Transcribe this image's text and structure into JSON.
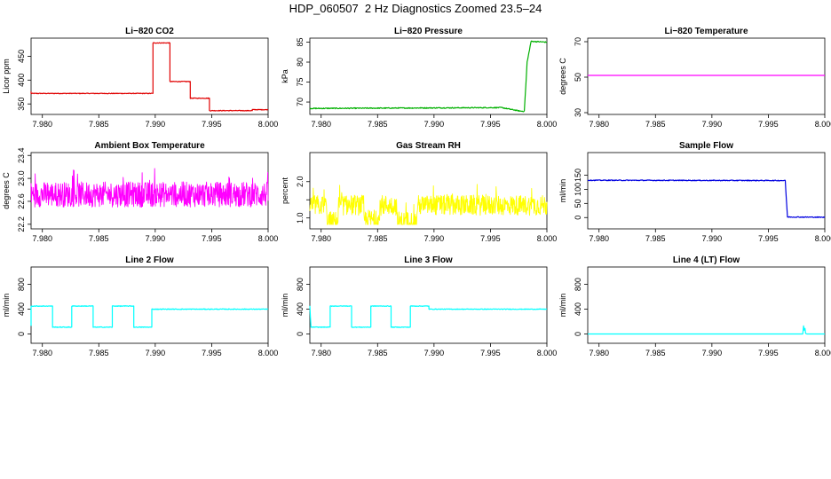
{
  "page": {
    "title": "HDP_060507  2 Hz Diagnostics Zoomed 23.5–24"
  },
  "colors": {
    "red": "#e00000",
    "green": "#00b000",
    "magenta": "#ff00ff",
    "yellow": "#ffff00",
    "blue": "#0000e0",
    "cyan": "#00ffff"
  },
  "chart_data": [
    {
      "type": "line",
      "title": "Li−820 CO2",
      "ylabel": "Licor ppm",
      "xlim": [
        7.979,
        8.0
      ],
      "x_ticks": [
        7.98,
        7.985,
        7.99,
        7.995,
        8.0
      ],
      "x_tick_labels": [
        "7.980",
        "7.985",
        "7.990",
        "7.995",
        "8.000"
      ],
      "ylim": [
        328,
        488
      ],
      "y_ticks": [
        350,
        400,
        450
      ],
      "y_tick_labels": [
        "350",
        "400",
        "450"
      ],
      "series": [
        {
          "color": "red",
          "noise": 0.7,
          "tick_marks_every": 0.0002,
          "x": [
            7.979,
            7.979,
            7.9898,
            7.9898,
            7.9913,
            7.9913,
            7.9931,
            7.9931,
            7.9948,
            7.9948,
            7.9986,
            7.9986,
            8.0
          ],
          "y": [
            376,
            372,
            372,
            478,
            478,
            397,
            397,
            362,
            362,
            336,
            336,
            338,
            338
          ]
        }
      ]
    },
    {
      "type": "line",
      "title": "Li−820 Pressure",
      "ylabel": "kPa",
      "xlim": [
        7.979,
        8.0
      ],
      "x_ticks": [
        7.98,
        7.985,
        7.99,
        7.995,
        8.0
      ],
      "x_tick_labels": [
        "7.980",
        "7.985",
        "7.990",
        "7.995",
        "8.000"
      ],
      "ylim": [
        66.9,
        86
      ],
      "y_ticks": [
        70,
        75,
        80,
        85
      ],
      "y_tick_labels": [
        "70",
        "75",
        "80",
        "85"
      ],
      "series": [
        {
          "color": "green",
          "noise": 0.12,
          "x": [
            7.979,
            7.9955,
            7.996,
            7.9977,
            7.998,
            7.99815,
            7.99825,
            7.99845,
            7.9986,
            8.0
          ],
          "y": [
            68.4,
            68.6,
            68.6,
            67.7,
            67.7,
            75,
            80,
            83,
            85.2,
            85
          ]
        }
      ]
    },
    {
      "type": "line",
      "title": "Li−820 Temperature",
      "ylabel": "degrees C",
      "xlim": [
        7.979,
        8.0
      ],
      "x_ticks": [
        7.98,
        7.985,
        7.99,
        7.995,
        8.0
      ],
      "x_tick_labels": [
        "7.980",
        "7.985",
        "7.990",
        "7.995",
        "8.000"
      ],
      "ylim": [
        29,
        72
      ],
      "y_ticks": [
        30,
        50,
        70
      ],
      "y_tick_labels": [
        "30",
        "50",
        "70"
      ],
      "series": [
        {
          "color": "magenta",
          "noise": 0,
          "x": [
            7.979,
            8.0
          ],
          "y": [
            51,
            51
          ]
        }
      ]
    },
    {
      "type": "line",
      "title": "Ambient Box Temperature",
      "ylabel": "degrees C",
      "xlim": [
        7.979,
        8.0
      ],
      "x_ticks": [
        7.98,
        7.985,
        7.99,
        7.995,
        8.0
      ],
      "x_tick_labels": [
        "7.980",
        "7.985",
        "7.990",
        "7.995",
        "8.000"
      ],
      "ylim": [
        22.12,
        23.45
      ],
      "y_ticks": [
        22.2,
        22.6,
        23.0,
        23.4
      ],
      "y_tick_labels": [
        "22.2",
        "22.6",
        "23.0",
        "23.4"
      ],
      "series": [
        {
          "color": "magenta",
          "noise_band": [
            22.25,
            23.35
          ],
          "base": 22.72,
          "spread": 0.22,
          "x": [
            7.979,
            8.0
          ]
        }
      ]
    },
    {
      "type": "line",
      "title": "Gas Stream RH",
      "ylabel": "percent",
      "xlim": [
        7.979,
        8.0
      ],
      "x_ticks": [
        7.98,
        7.985,
        7.99,
        7.995,
        8.0
      ],
      "x_tick_labels": [
        "7.980",
        "7.985",
        "7.990",
        "7.995",
        "8.000"
      ],
      "ylim": [
        0.7,
        2.8
      ],
      "y_ticks": [
        1.0,
        1.5,
        2.0
      ],
      "y_tick_labels": [
        "1.0",
        "",
        "2.0"
      ],
      "series": [
        {
          "color": "yellow",
          "noise_band": [
            0.82,
            2.7
          ],
          "base": 1.35,
          "spread": 0.28,
          "dips": [
            [
              7.9805,
              7.9815,
              0.9
            ],
            [
              7.9838,
              7.9852,
              0.95
            ],
            [
              7.9867,
              7.9885,
              0.9
            ]
          ],
          "x": [
            7.979,
            8.0
          ]
        }
      ]
    },
    {
      "type": "line",
      "title": "Sample Flow",
      "ylabel": "ml/min",
      "xlim": [
        7.979,
        8.0
      ],
      "x_ticks": [
        7.98,
        7.985,
        7.99,
        7.995,
        8.0
      ],
      "x_tick_labels": [
        "7.980",
        "7.985",
        "7.990",
        "7.995",
        "8.000"
      ],
      "ylim": [
        -40,
        230
      ],
      "y_ticks": [
        0,
        50,
        100,
        150
      ],
      "y_tick_labels": [
        "0",
        "50",
        "100",
        "150"
      ],
      "series": [
        {
          "color": "blue",
          "noise": 1.5,
          "x": [
            7.979,
            7.9965,
            7.9966,
            7.9967,
            8.0
          ],
          "y": [
            132,
            131,
            60,
            2,
            1
          ]
        }
      ]
    },
    {
      "type": "line",
      "title": "Line 2 Flow",
      "ylabel": "ml/min",
      "xlim": [
        7.979,
        8.0
      ],
      "x_ticks": [
        7.98,
        7.985,
        7.99,
        7.995,
        8.0
      ],
      "x_tick_labels": [
        "7.980",
        "7.985",
        "7.990",
        "7.995",
        "8.000"
      ],
      "ylim": [
        -150,
        1080
      ],
      "y_ticks": [
        0,
        400,
        800
      ],
      "y_tick_labels": [
        "0",
        "400",
        "800"
      ],
      "series": [
        {
          "color": "cyan",
          "noise": 6,
          "x": [
            7.979,
            7.979,
            7.9809,
            7.9809,
            7.9826,
            7.9826,
            7.9845,
            7.9845,
            7.9862,
            7.9862,
            7.9881,
            7.9881,
            7.9897,
            7.9897,
            8.0
          ],
          "y": [
            130,
            450,
            450,
            110,
            110,
            450,
            450,
            110,
            110,
            450,
            450,
            110,
            110,
            400,
            400
          ]
        }
      ]
    },
    {
      "type": "line",
      "title": "Line 3 Flow",
      "ylabel": "ml/min",
      "xlim": [
        7.979,
        8.0
      ],
      "x_ticks": [
        7.98,
        7.985,
        7.99,
        7.995,
        8.0
      ],
      "x_tick_labels": [
        "7.980",
        "7.985",
        "7.990",
        "7.995",
        "8.000"
      ],
      "ylim": [
        -150,
        1080
      ],
      "y_ticks": [
        0,
        400,
        800
      ],
      "y_tick_labels": [
        "0",
        "400",
        "800"
      ],
      "series": [
        {
          "color": "cyan",
          "noise": 5,
          "x": [
            7.979,
            7.979,
            7.9791,
            7.9808,
            7.9808,
            7.9827,
            7.9827,
            7.9844,
            7.9844,
            7.9862,
            7.9862,
            7.9879,
            7.9879,
            7.98955,
            7.98955,
            8.0
          ],
          "y": [
            450,
            450,
            110,
            110,
            450,
            450,
            110,
            110,
            450,
            450,
            110,
            110,
            450,
            450,
            400,
            400
          ]
        }
      ]
    },
    {
      "type": "line",
      "title": "Line 4 (LT) Flow",
      "ylabel": "ml/min",
      "xlim": [
        7.979,
        8.0
      ],
      "x_ticks": [
        7.98,
        7.985,
        7.99,
        7.995,
        8.0
      ],
      "x_tick_labels": [
        "7.980",
        "7.985",
        "7.990",
        "7.995",
        "8.000"
      ],
      "ylim": [
        -150,
        1080
      ],
      "y_ticks": [
        0,
        400,
        800
      ],
      "y_tick_labels": [
        "0",
        "400",
        "800"
      ],
      "series": [
        {
          "color": "cyan",
          "noise": 0,
          "x": [
            7.979,
            7.99805,
            7.99812,
            7.99818,
            7.99825,
            7.9983,
            7.9984,
            8.0
          ],
          "y": [
            0,
            0,
            130,
            60,
            90,
            10,
            0,
            0
          ]
        }
      ]
    }
  ]
}
